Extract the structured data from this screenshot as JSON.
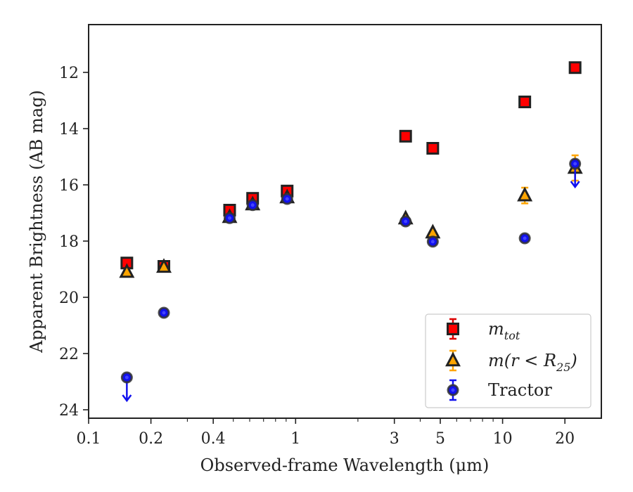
{
  "chart_data": {
    "type": "scatter",
    "xlabel": "Observed-frame Wavelength (μm)",
    "ylabel": "Apparent Brightness (AB mag)",
    "xscale": "log",
    "xlim": [
      0.1,
      30
    ],
    "ylim": [
      24.3,
      10.3
    ],
    "y_inverted": true,
    "x_ticks": [
      0.1,
      0.2,
      0.4,
      1,
      3,
      5,
      10,
      20
    ],
    "x_tick_labels": [
      "0.1",
      "0.2",
      "0.4",
      "1",
      "3",
      "5",
      "10",
      "20"
    ],
    "y_ticks": [
      12,
      14,
      16,
      18,
      20,
      22,
      24
    ],
    "y_tick_labels": [
      "12",
      "14",
      "16",
      "18",
      "20",
      "22",
      "24"
    ],
    "grid": false,
    "legend_position": "lower-right",
    "legend": [
      {
        "label": "m",
        "sub": "tot",
        "series": "mtot"
      },
      {
        "label": "m(r < R",
        "sub": "25",
        "close": ")",
        "series": "mr25"
      },
      {
        "label": "Tractor",
        "series": "tractor"
      }
    ],
    "series": [
      {
        "key": "mtot",
        "marker": "square",
        "color": "#ff0000",
        "edge": "#222222",
        "errcolor": "#dd0000",
        "points": [
          {
            "x": 0.153,
            "y": 18.78
          },
          {
            "x": 0.231,
            "y": 18.9
          },
          {
            "x": 0.48,
            "y": 16.9
          },
          {
            "x": 0.62,
            "y": 16.48
          },
          {
            "x": 0.91,
            "y": 16.22
          },
          {
            "x": 3.4,
            "y": 14.27
          },
          {
            "x": 4.6,
            "y": 14.7
          },
          {
            "x": 12.8,
            "y": 13.05
          },
          {
            "x": 22.4,
            "y": 11.83
          }
        ]
      },
      {
        "key": "mr25",
        "marker": "triangle",
        "color": "#ffa500",
        "edge": "#222222",
        "errcolor": "#ffa500",
        "points": [
          {
            "x": 0.153,
            "y": 19.1
          },
          {
            "x": 0.231,
            "y": 18.92
          },
          {
            "x": 0.48,
            "y": 17.15
          },
          {
            "x": 0.62,
            "y": 16.7
          },
          {
            "x": 0.91,
            "y": 16.45
          },
          {
            "x": 3.4,
            "y": 17.2
          },
          {
            "x": 4.6,
            "y": 17.7
          },
          {
            "x": 12.8,
            "y": 16.38,
            "err": 0.28
          },
          {
            "x": 22.4,
            "y": 15.4,
            "err": 0.45
          }
        ]
      },
      {
        "key": "tractor",
        "marker": "circle",
        "color": "#1111ee",
        "edge": "#333333",
        "errcolor": "#1111ee",
        "points": [
          {
            "x": 0.153,
            "y": 22.85,
            "upper_limit": true
          },
          {
            "x": 0.231,
            "y": 20.55
          },
          {
            "x": 0.48,
            "y": 17.18
          },
          {
            "x": 0.62,
            "y": 16.72
          },
          {
            "x": 0.91,
            "y": 16.5
          },
          {
            "x": 3.4,
            "y": 17.3
          },
          {
            "x": 4.6,
            "y": 18.02
          },
          {
            "x": 12.8,
            "y": 17.9
          },
          {
            "x": 22.4,
            "y": 15.25,
            "upper_limit": true
          }
        ]
      }
    ]
  }
}
